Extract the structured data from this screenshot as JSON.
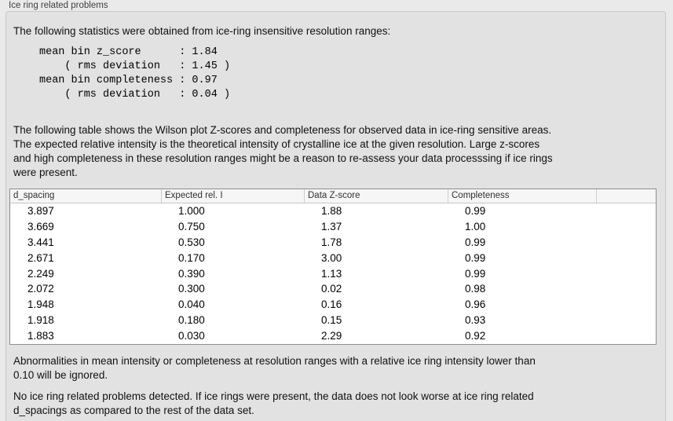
{
  "panel": {
    "title": "Ice ring related problems"
  },
  "intro_text": "The following statistics were obtained from ice-ring insensitive resolution ranges:",
  "statistics": {
    "block": "mean bin z_score      : 1.84\n    ( rms deviation   : 1.45 )\nmean bin completeness : 0.97\n    ( rms deviation   : 0.04 )",
    "mean_bin_z_score": "1.84",
    "z_score_rms_deviation": "1.45",
    "mean_bin_completeness": "0.97",
    "completeness_rms_deviation": "0.04"
  },
  "table_description": "The following table shows the Wilson plot Z-scores and completeness for observed data in ice-ring sensitive areas.\nThe expected relative intensity is the theoretical intensity of crystalline ice at the given resolution. Large z-scores\nand high completeness in these resolution ranges might be a reason to re-assess your data processsing if ice rings\nwere present.",
  "table": {
    "columns": [
      "d_spacing",
      "Expected rel. I",
      "Data Z-score",
      "Completeness"
    ],
    "rows": [
      [
        "3.897",
        "1.000",
        "1.88",
        "0.99"
      ],
      [
        "3.669",
        "0.750",
        "1.37",
        "1.00"
      ],
      [
        "3.441",
        "0.530",
        "1.78",
        "0.99"
      ],
      [
        "2.671",
        "0.170",
        "3.00",
        "0.99"
      ],
      [
        "2.249",
        "0.390",
        "1.13",
        "0.99"
      ],
      [
        "2.072",
        "0.300",
        "0.02",
        "0.98"
      ],
      [
        "1.948",
        "0.040",
        "0.16",
        "0.96"
      ],
      [
        "1.918",
        "0.180",
        "0.15",
        "0.93"
      ],
      [
        "1.883",
        "0.030",
        "2.29",
        "0.92"
      ]
    ]
  },
  "ignore_note": "Abnormalities in mean intensity or completeness at resolution ranges with a relative ice ring intensity lower than\n0.10 will be ignored.",
  "conclusion": "No ice ring related problems detected. If ice rings were present, the data does not look worse at ice ring related\nd_spacings as compared to the rest of the data set.",
  "colors": {
    "page_bg": "#eaeaea",
    "panel_bg": "#e2e2e2",
    "panel_border": "#c9c9c9",
    "table_border": "#8f8f8f",
    "table_header_bg": "#f6f6f6",
    "text": "#111111",
    "title_text": "#3f3f3f"
  }
}
